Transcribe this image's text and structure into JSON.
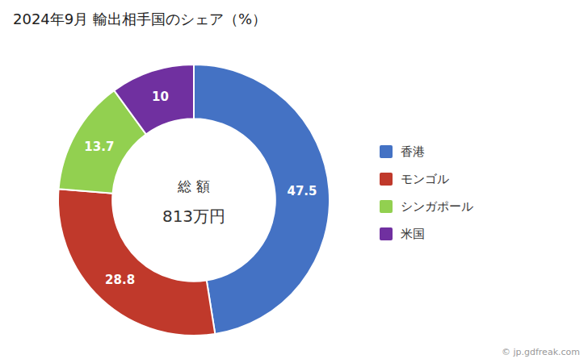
{
  "chart_data": {
    "type": "donut",
    "title": "2024年9月 輸出相手国のシェア（%）",
    "categories": [
      "香港",
      "モンゴル",
      "シンガポール",
      "米国"
    ],
    "values": [
      47.5,
      28.8,
      13.7,
      10.0
    ],
    "colors": [
      "#4472C4",
      "#C0392B",
      "#92D050",
      "#7030A0"
    ],
    "annotations": [
      "総 額",
      "813万円",
      "© jp.gdfreak.com"
    ],
    "data_labels": true,
    "legend": "right"
  }
}
